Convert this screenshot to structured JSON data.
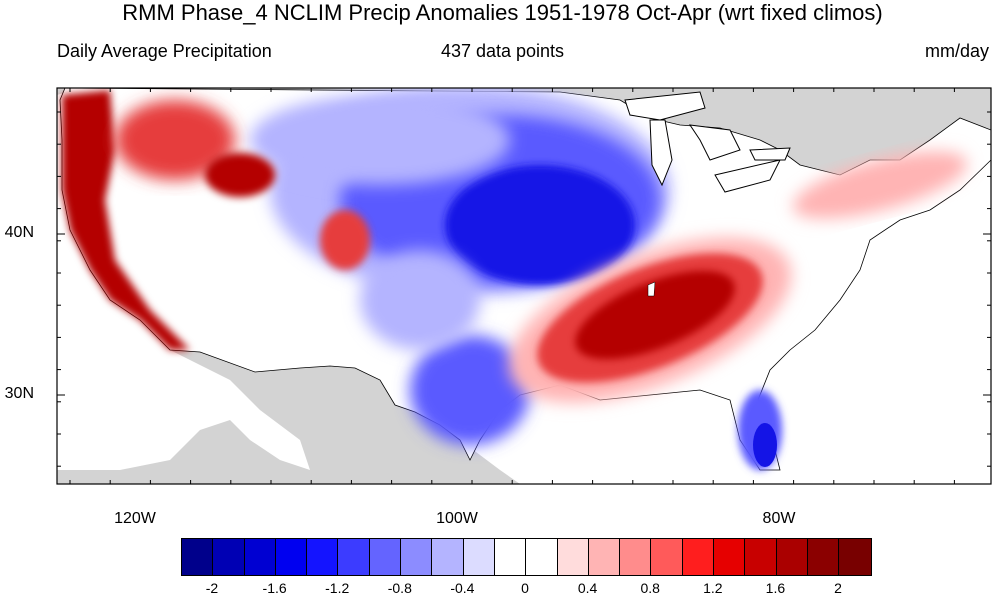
{
  "title": "RMM Phase_4 NCLIM Precip Anomalies 1951-1978 Oct-Apr (wrt fixed climos)",
  "subtitle_left": "Daily Average Precipitation",
  "subtitle_center": "437 data points",
  "subtitle_right": "mm/day",
  "longitude_labels": [
    "120W",
    "100W",
    "80W"
  ],
  "latitude_labels": [
    "40N",
    "30N"
  ],
  "colorbar": {
    "colors": [
      "#00008b",
      "#0000b4",
      "#0000d2",
      "#0000f0",
      "#1414ff",
      "#3c3cff",
      "#6464ff",
      "#8c8cff",
      "#b4b4ff",
      "#dcdcff",
      "#ffffff",
      "#ffffff",
      "#ffdcdc",
      "#ffb4b4",
      "#ff8c8c",
      "#ff5a5a",
      "#ff1e1e",
      "#e60000",
      "#c80000",
      "#aa0000",
      "#8b0000",
      "#780000"
    ],
    "tick_labels": [
      "-2",
      "-1.6",
      "-1.2",
      "-0.8",
      "-0.4",
      "0",
      "0.4",
      "0.8",
      "1.2",
      "1.6",
      "2"
    ]
  },
  "colors": {
    "land_mask": "#d3d3d3",
    "strong_positive": "#b40000",
    "positive": "#e63c3c",
    "weak_positive": "#ffb4b4",
    "strong_negative": "#1414e6",
    "negative": "#5a5aff",
    "weak_negative": "#b4b4ff",
    "neutral": "#ffffff"
  }
}
